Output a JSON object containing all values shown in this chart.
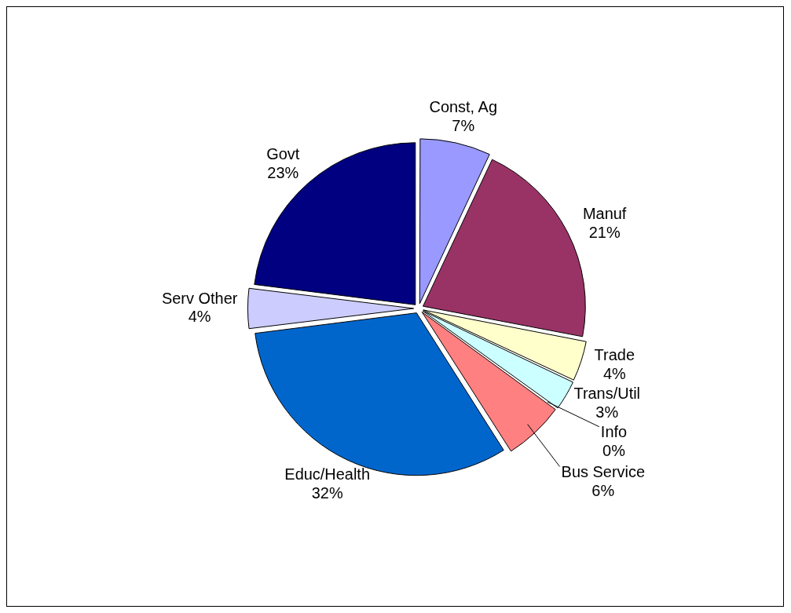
{
  "chart_data": {
    "type": "pie",
    "categories": [
      "Const, Ag",
      "Manuf",
      "Trade",
      "Trans/Util",
      "Info",
      "Bus Service",
      "Educ/Health",
      "Serv Other",
      "Govt"
    ],
    "values": [
      7,
      21,
      4,
      3,
      0,
      6,
      32,
      4,
      23
    ],
    "value_labels": [
      "7%",
      "21%",
      "4%",
      "3%",
      "0%",
      "6%",
      "32%",
      "4%",
      "23%"
    ],
    "colors": [
      "#9999ff",
      "#993366",
      "#ffffcc",
      "#ccffff",
      "#660066",
      "#ff8080",
      "#0066cc",
      "#ccccff",
      "#000080"
    ],
    "legend": false
  }
}
